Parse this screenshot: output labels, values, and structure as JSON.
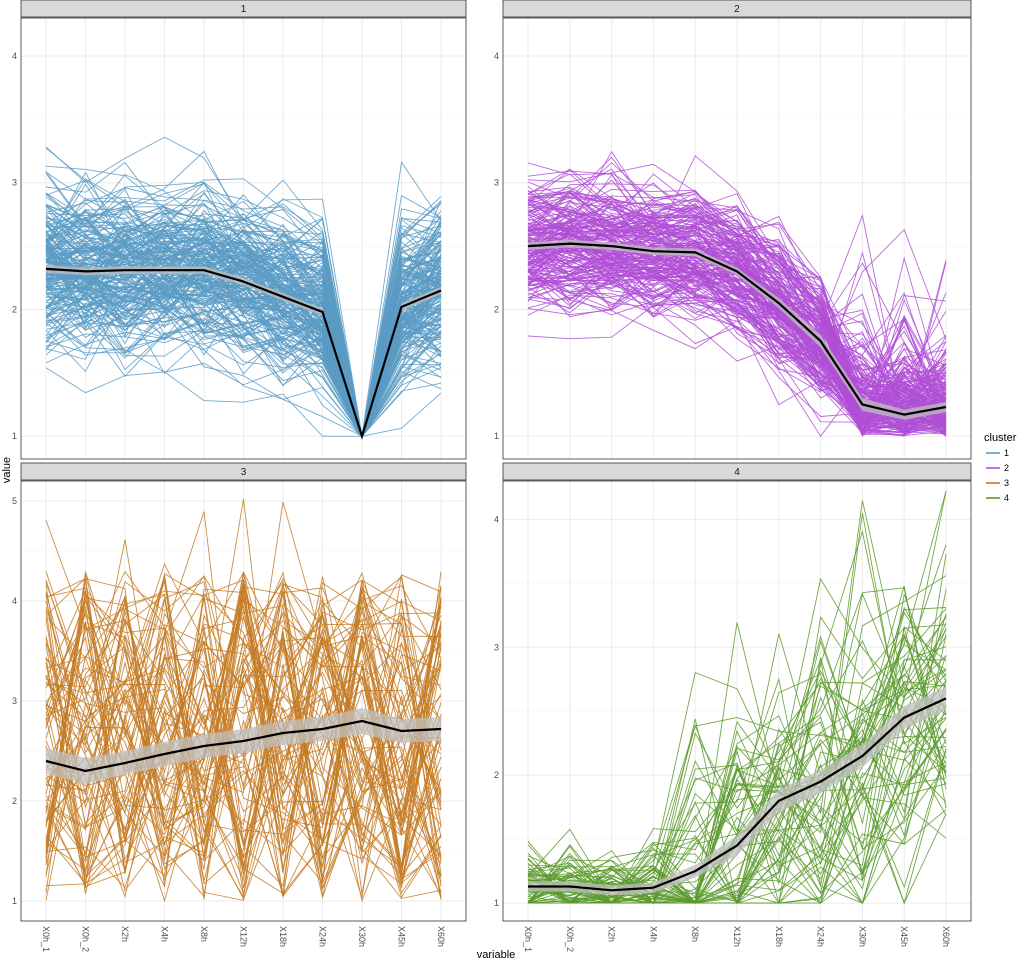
{
  "chart_data": {
    "type": "line",
    "facet_by": "cluster",
    "xlabel": "variable",
    "ylabel": "value",
    "categories": [
      "X0h_1",
      "X0h_2",
      "X2h",
      "X4h",
      "X8h",
      "X12h",
      "X18h",
      "X24h",
      "X30h",
      "X45h",
      "X60h"
    ],
    "legend": {
      "title": "cluster",
      "placement": "right",
      "entries": [
        {
          "label": "1",
          "color": "#5b9bc4"
        },
        {
          "label": "2",
          "color": "#b04fd6"
        },
        {
          "label": "3",
          "color": "#c47a23"
        },
        {
          "label": "4",
          "color": "#5a9a2c"
        }
      ]
    },
    "grid": true,
    "panels": [
      {
        "strip": "1",
        "color": "#5b9bc4",
        "ylim": [
          0.82,
          4.3
        ],
        "yticks": [
          1,
          2,
          3,
          4
        ],
        "n_lines": 220,
        "profile_kind": "drop",
        "mean": [
          2.32,
          2.3,
          2.31,
          2.31,
          2.31,
          2.22,
          2.1,
          1.98,
          1.0,
          2.02,
          2.15
        ],
        "ci_halfwidth": [
          0.03,
          0.03,
          0.03,
          0.03,
          0.03,
          0.03,
          0.03,
          0.03,
          0.01,
          0.03,
          0.03
        ],
        "spread": 0.38
      },
      {
        "strip": "2",
        "color": "#b04fd6",
        "ylim": [
          0.82,
          4.3
        ],
        "yticks": [
          1,
          2,
          3,
          4
        ],
        "n_lines": 200,
        "profile_kind": "decline",
        "mean": [
          2.5,
          2.52,
          2.5,
          2.46,
          2.45,
          2.3,
          2.05,
          1.75,
          1.25,
          1.17,
          1.23
        ],
        "ci_halfwidth": [
          0.03,
          0.03,
          0.03,
          0.03,
          0.03,
          0.03,
          0.04,
          0.05,
          0.05,
          0.04,
          0.04
        ],
        "spread": 0.3
      },
      {
        "strip": "3",
        "color": "#c47a23",
        "ylim": [
          0.8,
          5.2
        ],
        "yticks": [
          1,
          2,
          3,
          4,
          5
        ],
        "n_lines": 90,
        "profile_kind": "noisy",
        "mean": [
          2.4,
          2.3,
          2.38,
          2.47,
          2.55,
          2.6,
          2.68,
          2.72,
          2.8,
          2.7,
          2.72
        ],
        "ci_halfwidth": [
          0.13,
          0.13,
          0.12,
          0.12,
          0.12,
          0.12,
          0.12,
          0.12,
          0.13,
          0.12,
          0.12
        ],
        "spread": 1.1
      },
      {
        "strip": "4",
        "color": "#5a9a2c",
        "ylim": [
          0.86,
          4.3
        ],
        "yticks": [
          1,
          2,
          3,
          4
        ],
        "n_lines": 70,
        "profile_kind": "rise",
        "mean": [
          1.13,
          1.13,
          1.1,
          1.12,
          1.25,
          1.45,
          1.8,
          1.95,
          2.15,
          2.45,
          2.6
        ],
        "ci_halfwidth": [
          0.04,
          0.04,
          0.04,
          0.04,
          0.05,
          0.08,
          0.09,
          0.09,
          0.09,
          0.09,
          0.09
        ],
        "spread": 0.45
      }
    ],
    "mean_line_color": "#000000",
    "ci_band_color": "#bfbfbf"
  }
}
